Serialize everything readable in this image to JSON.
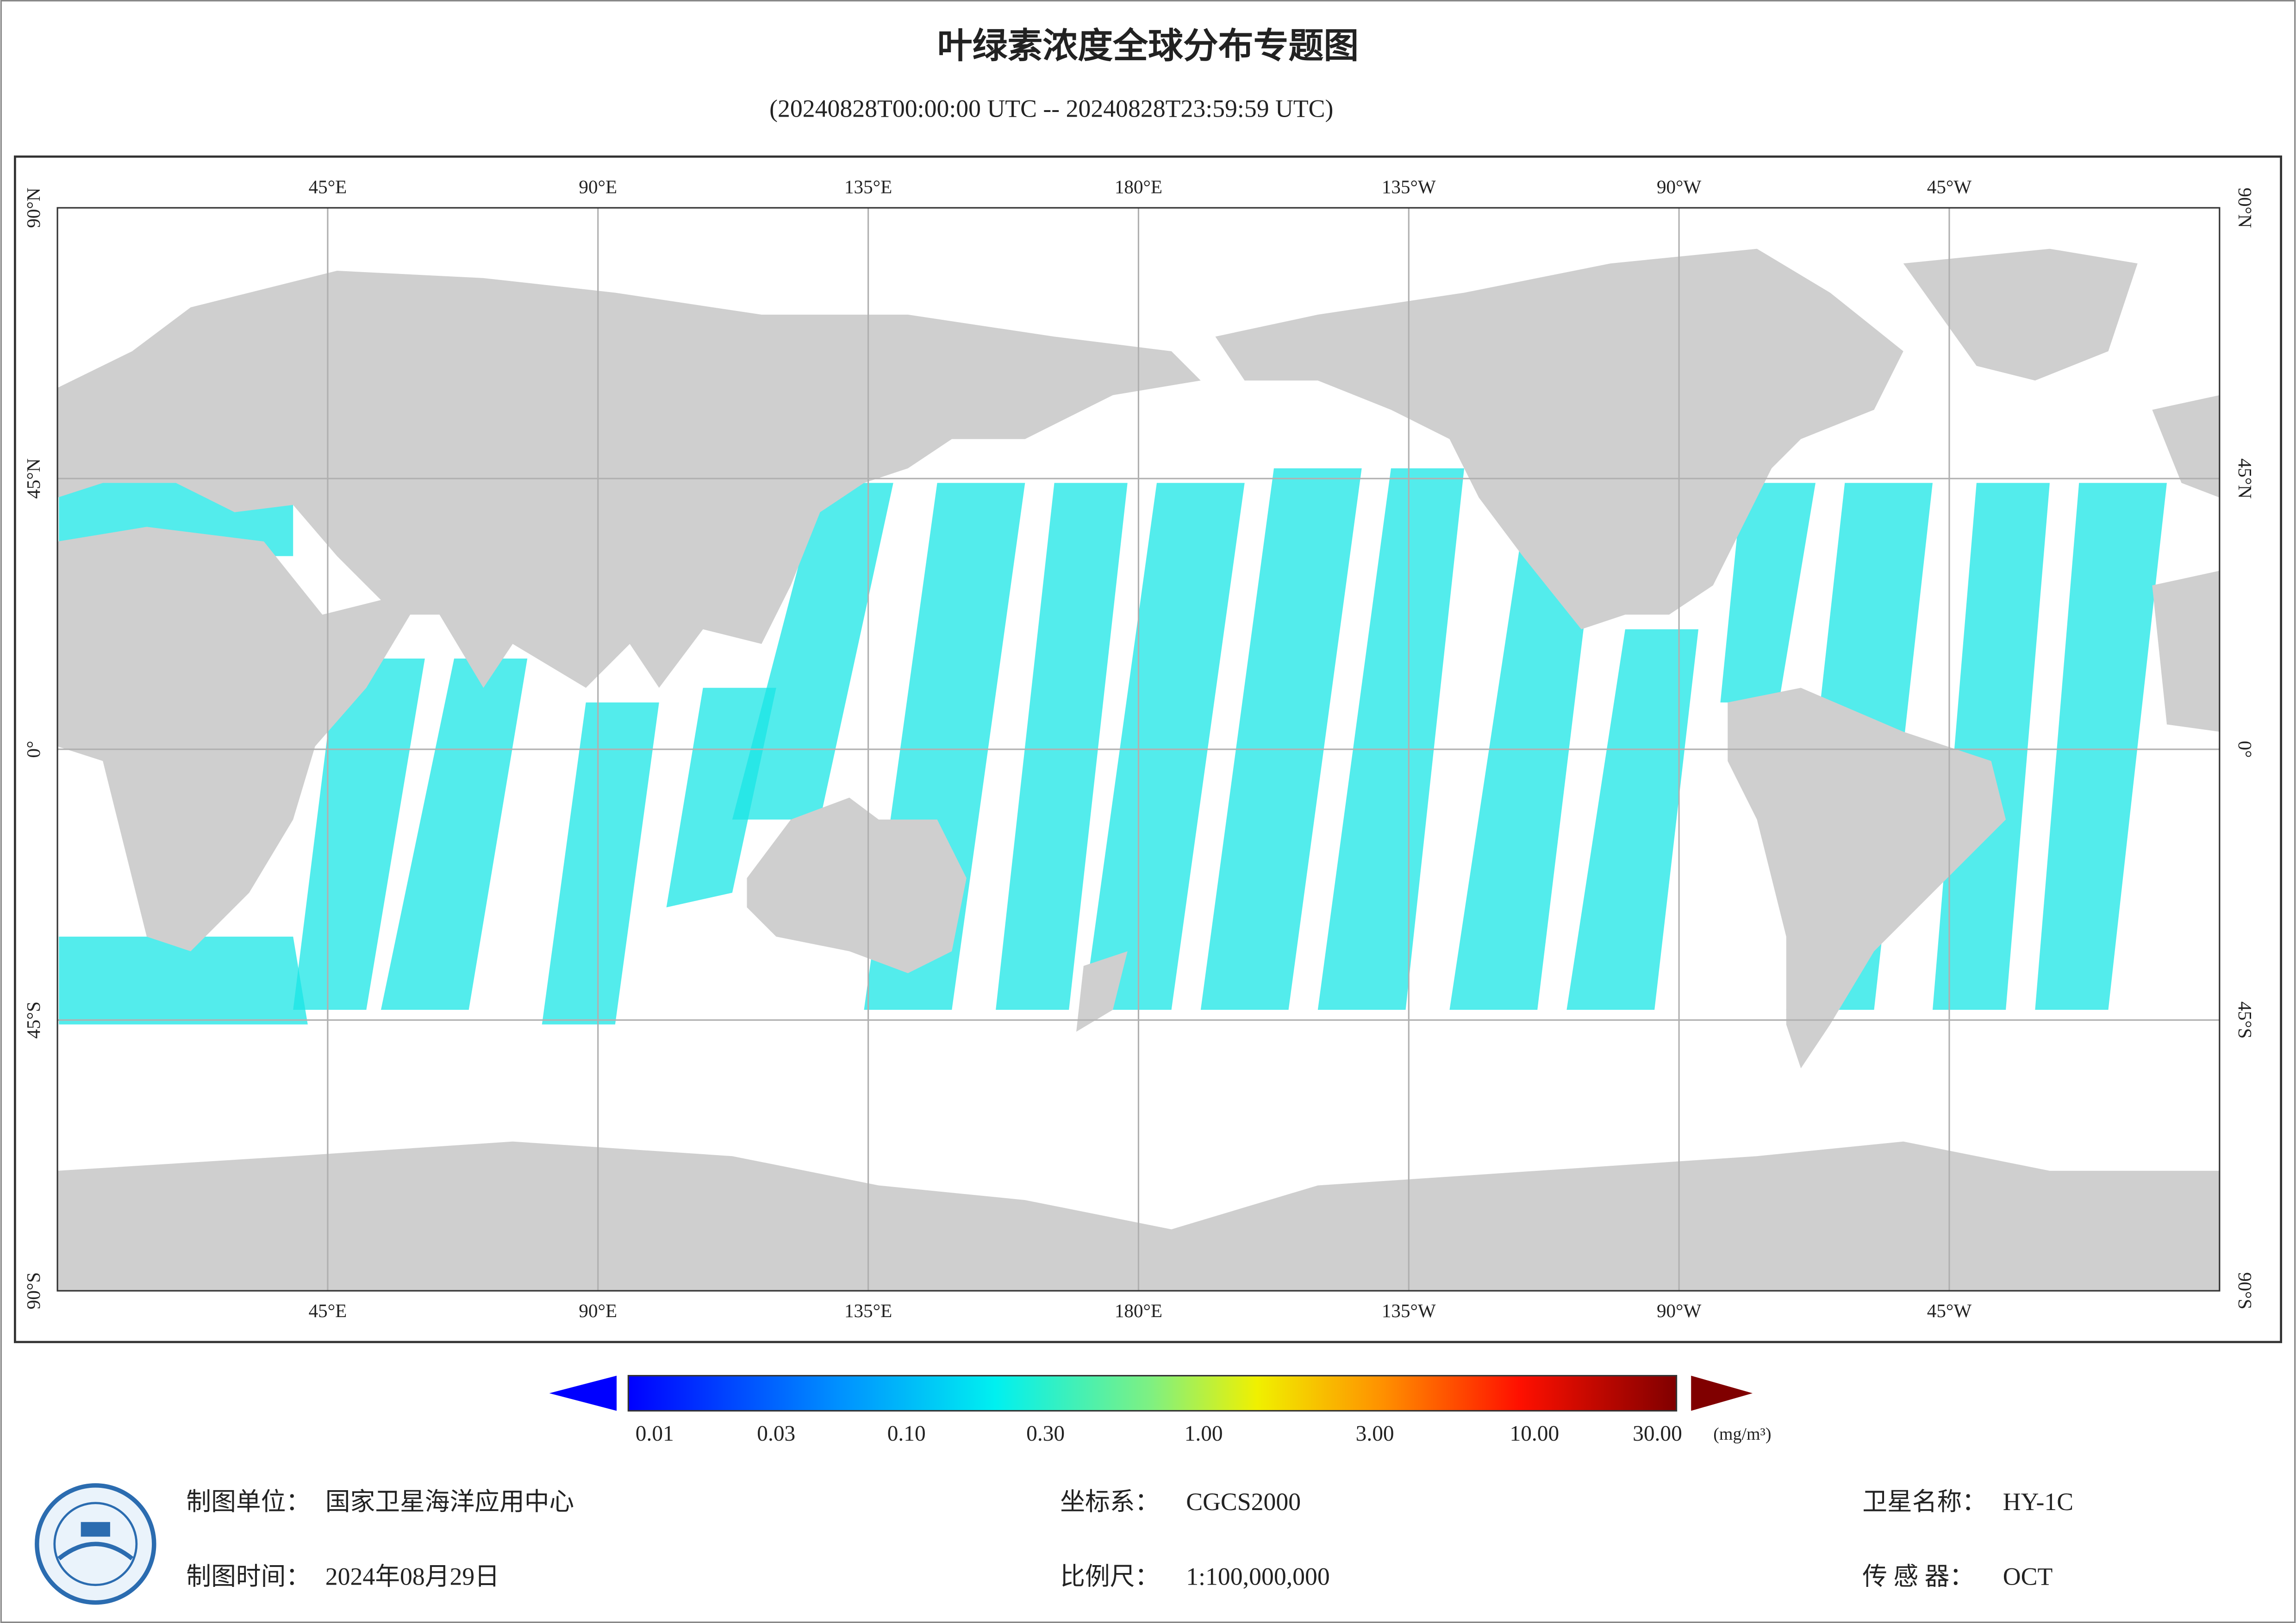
{
  "header": {
    "title": "叶绿素浓度全球分布专题图",
    "subtitle": "(20240828T00:00:00 UTC -- 20240828T23:59:59 UTC)"
  },
  "map": {
    "longitude_labels": [
      "45°E",
      "90°E",
      "135°E",
      "180°E",
      "135°W",
      "90°W",
      "45°W"
    ],
    "latitude_labels": [
      "90°N",
      "45°N",
      "0°",
      "45°S",
      "90°S"
    ]
  },
  "colorbar": {
    "labels": [
      "0.01",
      "0.03",
      "0.10",
      "0.30",
      "1.00",
      "3.00",
      "10.00",
      "30.00"
    ],
    "unit": "(mg/m³)"
  },
  "footer": {
    "items": [
      {
        "label": "制图单位：",
        "value": "国家卫星海洋应用中心"
      },
      {
        "label": "制图时间：",
        "value": "2024年08月29日"
      },
      {
        "label": "坐标系：",
        "value": "CGCS2000"
      },
      {
        "label": "比例尺：",
        "value": "1:100,000,000"
      },
      {
        "label": "卫星名称：",
        "value": "HY-1C"
      },
      {
        "label": "传 感 器：",
        "value": "OCT"
      }
    ]
  }
}
